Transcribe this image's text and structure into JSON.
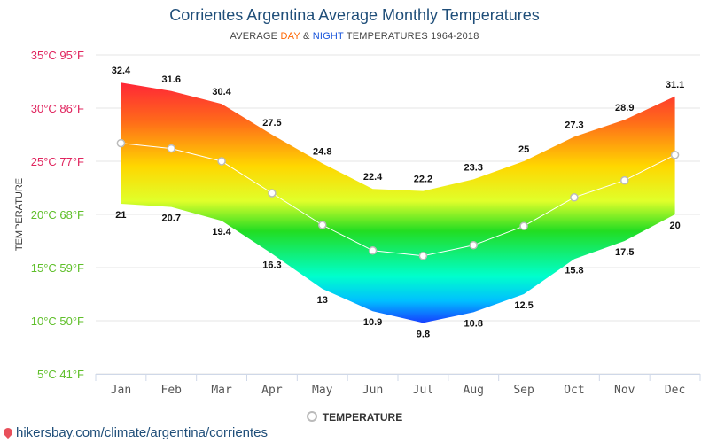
{
  "chart_data": {
    "type": "area",
    "title": "Corrientes Argentina Average Monthly Temperatures",
    "subtitle": {
      "prefix": "AVERAGE ",
      "day": "DAY",
      "mid": " & ",
      "night": "NIGHT",
      "suffix": " TEMPERATURES 1964-2018"
    },
    "ylabel": "TEMPERATURE",
    "categories": [
      "Jan",
      "Feb",
      "Mar",
      "Apr",
      "May",
      "Jun",
      "Jul",
      "Aug",
      "Sep",
      "Oct",
      "Nov",
      "Dec"
    ],
    "ylim": [
      5,
      35
    ],
    "yticks": [
      {
        "value": 35,
        "label": "35°C 95°F"
      },
      {
        "value": 30,
        "label": "30°C 86°F"
      },
      {
        "value": 25,
        "label": "25°C 77°F"
      },
      {
        "value": 20,
        "label": "20°C 68°F"
      },
      {
        "value": 15,
        "label": "15°C 59°F"
      },
      {
        "value": 10,
        "label": "10°C 50°F"
      },
      {
        "value": 5,
        "label": "5°C 41°F"
      }
    ],
    "day": [
      32.4,
      31.6,
      30.4,
      27.5,
      24.8,
      22.4,
      22.2,
      23.3,
      25,
      27.3,
      28.9,
      31.1
    ],
    "night": [
      21,
      20.7,
      19.4,
      16.3,
      13,
      10.9,
      9.8,
      10.8,
      12.5,
      15.8,
      17.5,
      20
    ],
    "series": [
      {
        "name": "TEMPERATURE",
        "values": [
          26.7,
          26.2,
          25,
          22,
          19,
          16.6,
          16.1,
          17.1,
          18.9,
          21.6,
          23.2,
          25.6
        ]
      }
    ],
    "grid": true,
    "legend": "bottom-center",
    "colors": {
      "hot": "#ff1a3c",
      "warm": "#ffd700",
      "mild": "#22dd22",
      "cold": "#1a2cff",
      "line": "#ffffff",
      "point": "#bbbbbb"
    }
  },
  "source": "hikersbay.com/climate/argentina/corrientes"
}
